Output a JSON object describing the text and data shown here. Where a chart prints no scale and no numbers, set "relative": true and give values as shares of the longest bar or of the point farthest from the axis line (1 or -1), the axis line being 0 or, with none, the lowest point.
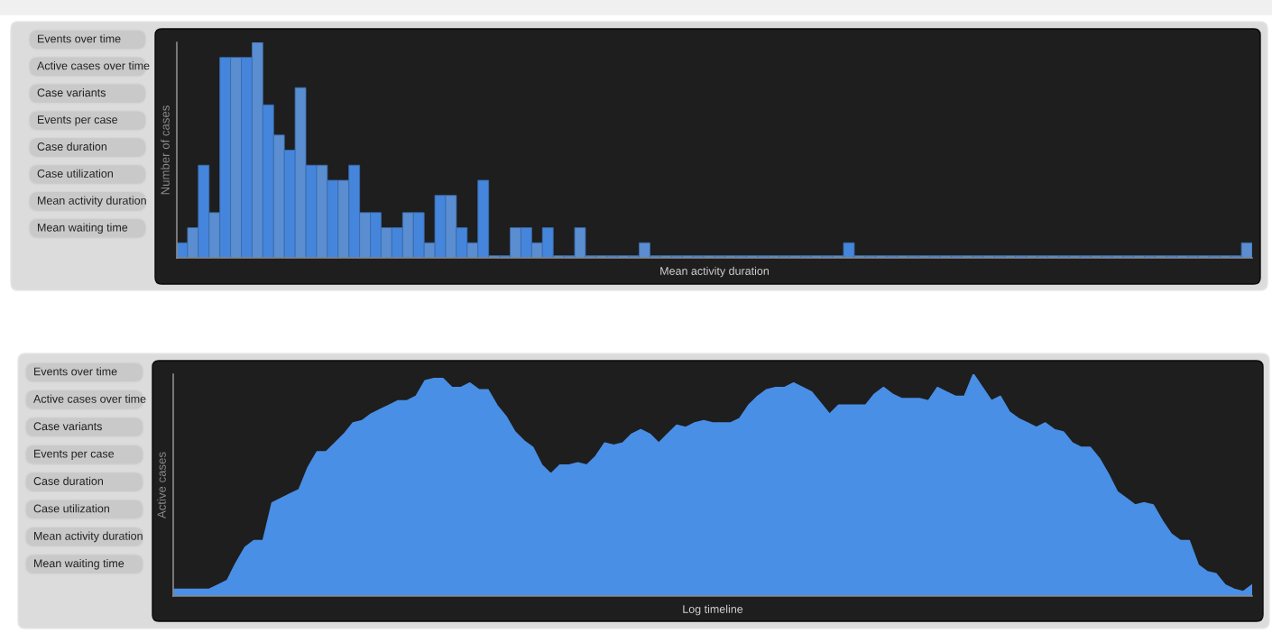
{
  "chart_data": [
    {
      "type": "other",
      "annotations": [
        "Events over time",
        "Active cases over time",
        "Case variants",
        "Events per case",
        "Case duration",
        "Case utilization",
        "Mean activity duration",
        "Mean waiting time"
      ]
    },
    {
      "type": "bar",
      "relative": true,
      "ylabel": "Number of cases",
      "xlabel": "Mean activity duration",
      "categories": [
        null,
        null,
        null,
        null,
        null,
        null,
        null,
        null,
        null,
        null,
        null,
        null,
        null,
        null,
        null,
        null,
        null,
        null,
        null,
        null,
        null,
        null,
        null,
        null,
        null,
        null,
        null,
        null,
        null,
        null,
        null,
        null,
        null,
        null,
        null,
        null,
        null,
        null,
        null,
        null,
        null,
        null,
        null,
        null,
        null,
        null,
        null,
        null,
        null,
        null,
        null,
        null,
        null,
        null,
        null,
        null,
        null,
        null,
        null,
        null,
        null,
        null,
        null,
        null,
        null,
        null,
        null,
        null,
        null,
        null,
        null,
        null,
        null,
        null,
        null,
        null,
        null,
        null,
        null,
        null,
        null,
        null,
        null,
        null,
        null,
        null,
        null,
        null,
        null,
        null,
        null,
        null,
        null,
        null,
        null,
        null,
        null,
        null,
        null,
        null
      ],
      "values": [
        0.07,
        0.14,
        0.43,
        0.21,
        0.93,
        0.93,
        0.93,
        1,
        0.71,
        0.57,
        0.5,
        0.79,
        0.43,
        0.43,
        0.36,
        0.36,
        0.43,
        0.21,
        0.21,
        0.14,
        0.14,
        0.21,
        0.21,
        0.07,
        0.29,
        0.29,
        0.14,
        0.07,
        0.36,
        0.01,
        0.01,
        0.14,
        0.14,
        0.07,
        0.14,
        0.01,
        0.01,
        0.14,
        0.01,
        0.01,
        0.01,
        0.01,
        0.01,
        0.07,
        0.01,
        0.01,
        0.01,
        0.01,
        0.01,
        0.01,
        0.01,
        0.01,
        0.01,
        0.01,
        0.01,
        0.01,
        0.01,
        0.01,
        0.01,
        0.01,
        0.01,
        0.01,
        0.07,
        0.01,
        0.01,
        0.01,
        0.01,
        0.01,
        0.01,
        0.01,
        0.01,
        0.01,
        0.01,
        0.01,
        0.01,
        0.01,
        0.01,
        0.01,
        0.01,
        0.01,
        0.01,
        0.01,
        0.01,
        0.01,
        0.01,
        0.01,
        0.01,
        0.01,
        0.01,
        0.01,
        0.01,
        0.01,
        0.01,
        0.01,
        0.01,
        0.01,
        0.01,
        0.01,
        0.01,
        0.07
      ],
      "colors": [
        "#4586dc",
        "#5a8ed0",
        "#4586dc",
        "#5a8ed0",
        "#4586dc",
        "#5a8ed0",
        "#4586dc",
        "#5a8ed0",
        "#4586dc",
        "#5a8ed0",
        "#4586dc",
        "#5a8ed0",
        "#4586dc",
        "#5a8ed0",
        "#4586dc",
        "#5a8ed0",
        "#4586dc",
        "#5a8ed0",
        "#4586dc",
        "#5a8ed0",
        "#4586dc",
        "#5a8ed0",
        "#4586dc",
        "#5a8ed0",
        "#4586dc",
        "#5a8ed0",
        "#4586dc",
        "#5a8ed0",
        "#4586dc",
        "#5a8ed0",
        "#4586dc",
        "#5a8ed0",
        "#4586dc",
        "#5a8ed0",
        "#4586dc",
        "#5a8ed0",
        "#4586dc",
        "#5a8ed0",
        "#4586dc",
        "#5a8ed0",
        "#4586dc",
        "#5a8ed0",
        "#4586dc",
        "#5a8ed0",
        "#4586dc",
        "#5a8ed0",
        "#4586dc",
        "#5a8ed0",
        "#4586dc",
        "#5a8ed0",
        "#4586dc",
        "#5a8ed0",
        "#4586dc",
        "#5a8ed0",
        "#4586dc",
        "#5a8ed0",
        "#4586dc",
        "#5a8ed0",
        "#4586dc",
        "#5a8ed0",
        "#4586dc",
        "#5a8ed0",
        "#4586dc",
        "#5a8ed0",
        "#4586dc",
        "#5a8ed0",
        "#4586dc",
        "#5a8ed0",
        "#4586dc",
        "#5a8ed0",
        "#4586dc",
        "#5a8ed0",
        "#4586dc",
        "#5a8ed0",
        "#4586dc",
        "#5a8ed0",
        "#4586dc",
        "#5a8ed0",
        "#4586dc",
        "#5a8ed0",
        "#4586dc",
        "#5a8ed0",
        "#4586dc",
        "#5a8ed0",
        "#4586dc",
        "#5a8ed0",
        "#4586dc",
        "#5a8ed0",
        "#4586dc",
        "#5a8ed0",
        "#4586dc",
        "#5a8ed0",
        "#4586dc",
        "#5a8ed0",
        "#4586dc",
        "#5a8ed0",
        "#4586dc",
        "#5a8ed0",
        "#4586dc",
        "#5a8ed0"
      ]
    },
    {
      "type": "other",
      "annotations": [
        "Events over time",
        "Active cases over time",
        "Case variants",
        "Events per case",
        "Case duration",
        "Case utilization",
        "Mean activity duration",
        "Mean waiting time"
      ]
    },
    {
      "type": "area",
      "relative": true,
      "ylabel": "Active cases",
      "xlabel": "Log timeline",
      "categories": [
        null,
        null,
        null,
        null,
        null,
        null,
        null,
        null,
        null,
        null,
        null,
        null,
        null,
        null,
        null,
        null,
        null,
        null,
        null,
        null,
        null,
        null,
        null,
        null,
        null,
        null,
        null,
        null,
        null,
        null,
        null,
        null,
        null,
        null,
        null,
        null,
        null,
        null,
        null,
        null,
        null,
        null,
        null,
        null,
        null,
        null,
        null,
        null,
        null,
        null,
        null,
        null,
        null,
        null,
        null,
        null,
        null,
        null,
        null,
        null,
        null,
        null,
        null,
        null,
        null,
        null,
        null,
        null,
        null,
        null,
        null,
        null,
        null,
        null,
        null,
        null,
        null,
        null,
        null,
        null,
        null,
        null,
        null,
        null,
        null,
        null,
        null,
        null,
        null,
        null,
        null,
        null,
        null,
        null,
        null,
        null,
        null,
        null,
        null,
        null,
        null,
        null,
        null,
        null,
        null,
        null,
        null,
        null,
        null,
        null,
        null,
        null,
        null,
        null,
        null,
        null,
        null,
        null,
        null,
        null,
        null
      ],
      "series": [
        {
          "color": "#4a8fe6",
          "values": [
            0.03,
            0.03,
            0.03,
            0.03,
            0.03,
            0.05,
            0.07,
            0.15,
            0.22,
            0.25,
            0.25,
            0.42,
            0.44,
            0.46,
            0.48,
            0.58,
            0.65,
            0.65,
            0.69,
            0.73,
            0.78,
            0.79,
            0.82,
            0.84,
            0.86,
            0.88,
            0.88,
            0.9,
            0.97,
            0.98,
            0.98,
            0.94,
            0.94,
            0.96,
            0.93,
            0.93,
            0.86,
            0.81,
            0.74,
            0.7,
            0.67,
            0.59,
            0.55,
            0.59,
            0.59,
            0.6,
            0.59,
            0.63,
            0.69,
            0.68,
            0.69,
            0.73,
            0.75,
            0.73,
            0.69,
            0.73,
            0.77,
            0.76,
            0.78,
            0.79,
            0.78,
            0.78,
            0.78,
            0.8,
            0.86,
            0.9,
            0.93,
            0.94,
            0.94,
            0.96,
            0.94,
            0.92,
            0.87,
            0.82,
            0.86,
            0.86,
            0.86,
            0.86,
            0.91,
            0.94,
            0.91,
            0.89,
            0.89,
            0.89,
            0.88,
            0.94,
            0.92,
            0.9,
            0.9,
            1,
            0.94,
            0.88,
            0.9,
            0.83,
            0.8,
            0.78,
            0.76,
            0.78,
            0.75,
            0.74,
            0.69,
            0.67,
            0.67,
            0.62,
            0.55,
            0.47,
            0.44,
            0.41,
            0.42,
            0.41,
            0.34,
            0.28,
            0.25,
            0.25,
            0.14,
            0.11,
            0.1,
            0.05,
            0.03,
            0.02,
            0.05
          ]
        }
      ]
    }
  ]
}
